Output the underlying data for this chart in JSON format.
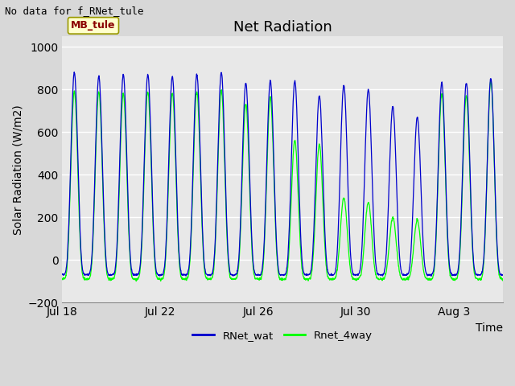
{
  "title": "Net Radiation",
  "no_data_text": "No data for f_RNet_tule",
  "ylabel": "Solar Radiation (W/m2)",
  "xlabel": "Time",
  "legend_label1": "RNet_wat",
  "legend_label2": "Rnet_4way",
  "legend_color1": "#0000cd",
  "legend_color2": "#00ff00",
  "mb_tule_label": "MB_tule",
  "ylim": [
    -200,
    1050
  ],
  "yticks": [
    -200,
    0,
    200,
    400,
    600,
    800,
    1000
  ],
  "background_color": "#e8e8e8",
  "grid_color": "#ffffff",
  "n_days": 18,
  "xtick_labels": [
    "Jul 18",
    "Jul 22",
    "Jul 26",
    "Jul 30",
    "Aug 3"
  ],
  "xtick_positions": [
    0,
    4,
    8,
    12,
    16
  ],
  "peak_vals_blue": [
    880,
    860,
    870,
    870,
    860,
    870,
    880,
    830,
    840,
    840,
    770,
    820,
    800,
    720,
    670,
    830,
    830,
    850
  ],
  "peak_vals_green": [
    790,
    790,
    780,
    790,
    785,
    790,
    795,
    730,
    760,
    560,
    540,
    290,
    270,
    200,
    185,
    780,
    770,
    840
  ],
  "night_val_blue": -70,
  "night_val_green": -90,
  "title_fontsize": 13,
  "label_fontsize": 10,
  "tick_fontsize": 10,
  "figsize": [
    6.4,
    4.8
  ],
  "dpi": 100
}
